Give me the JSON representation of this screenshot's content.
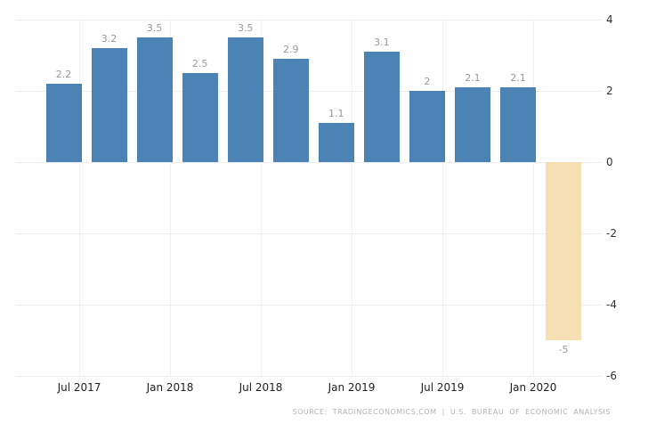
{
  "chart_data": {
    "type": "bar",
    "title": "",
    "xlabel": "",
    "ylabel": "",
    "values": [
      2.2,
      3.2,
      3.5,
      2.5,
      3.5,
      2.9,
      1.1,
      3.1,
      2,
      2.1,
      2.1,
      -5
    ],
    "x_tick_labels": [
      "Jul 2017",
      "Jan 2018",
      "Jul 2018",
      "Jan 2019",
      "Jul 2019",
      "Jan 2020"
    ],
    "y_ticks": [
      4,
      2,
      0,
      -2,
      -4,
      -6
    ],
    "ylim": [
      -6,
      4
    ],
    "grid": true,
    "legend": "none",
    "value_labels_shown": true,
    "positive_color": "#4A83B4",
    "negative_color": "#F5DFB3",
    "gridline_color": "#ededed",
    "value_label_color": "#999999",
    "axis_label_color": "#333333"
  },
  "footer": {
    "source": "SOURCE: TRADINGECONOMICS.COM | U.S. BUREAU OF ECONOMIC ANALYSIS"
  }
}
